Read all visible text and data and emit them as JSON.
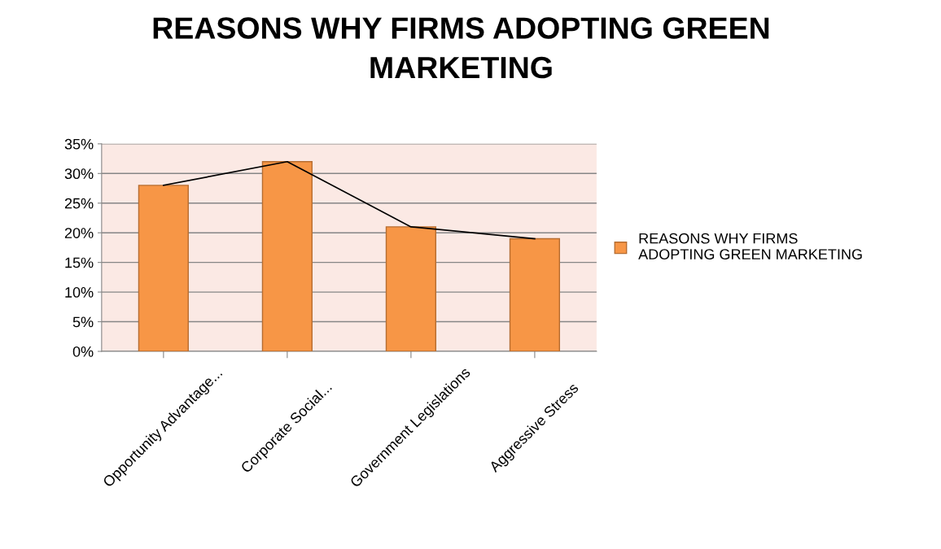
{
  "chart_data": {
    "type": "bar",
    "title": "REASONS WHY FIRMS ADOPTING GREEN MARKETING",
    "categories": [
      "Opportunity Advantage...",
      "Corporate Social...",
      "Government Legislations",
      "Aggressive Stress"
    ],
    "series": [
      {
        "name": "REASONS WHY FIRMS ADOPTING GREEN MARKETING",
        "color": "#f79646",
        "values": [
          28,
          32,
          21,
          19
        ]
      },
      {
        "type": "line",
        "color": "#000000",
        "values": [
          28,
          32,
          21,
          19
        ]
      }
    ],
    "ylim": [
      0,
      35
    ],
    "yticks": [
      {
        "value": 0,
        "label": "0%"
      },
      {
        "value": 5,
        "label": "5%"
      },
      {
        "value": 10,
        "label": "10%"
      },
      {
        "value": 15,
        "label": "15%"
      },
      {
        "value": 20,
        "label": "20%"
      },
      {
        "value": 25,
        "label": "25%"
      },
      {
        "value": 30,
        "label": "30%"
      },
      {
        "value": 35,
        "label": "35%"
      }
    ],
    "grid": "y",
    "legend": "right",
    "marker": "none",
    "line_style": "solid"
  }
}
